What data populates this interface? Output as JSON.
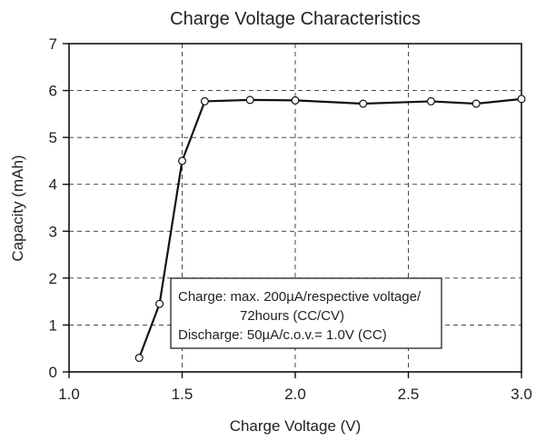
{
  "chart_data": {
    "type": "line",
    "title": "Charge Voltage Characteristics",
    "xlabel": "Charge Voltage (V)",
    "ylabel": "Capacity (mAh)",
    "xlim": [
      1.0,
      3.0
    ],
    "ylim": [
      0,
      7
    ],
    "xticks": [
      1.0,
      1.5,
      2.0,
      2.5,
      3.0
    ],
    "xtick_labels": [
      "1.0",
      "1.5",
      "2.0",
      "2.5",
      "3.0"
    ],
    "yticks": [
      0,
      1,
      2,
      3,
      4,
      5,
      6,
      7
    ],
    "ytick_labels": [
      "0",
      "1",
      "2",
      "3",
      "4",
      "5",
      "6",
      "7"
    ],
    "grid": true,
    "series": [
      {
        "x": [
          1.31,
          1.4,
          1.5,
          1.6,
          1.8,
          2.0,
          2.3,
          2.6,
          2.8,
          3.0
        ],
        "y": [
          0.3,
          1.45,
          4.5,
          5.77,
          5.8,
          5.79,
          5.72,
          5.77,
          5.72,
          5.82
        ]
      }
    ],
    "annotation": {
      "lines": [
        "Charge: max. 200µA/respective voltage/",
        "72hours (CC/CV)",
        "Discharge: 50µA/c.o.v.= 1.0V (CC)"
      ]
    }
  }
}
